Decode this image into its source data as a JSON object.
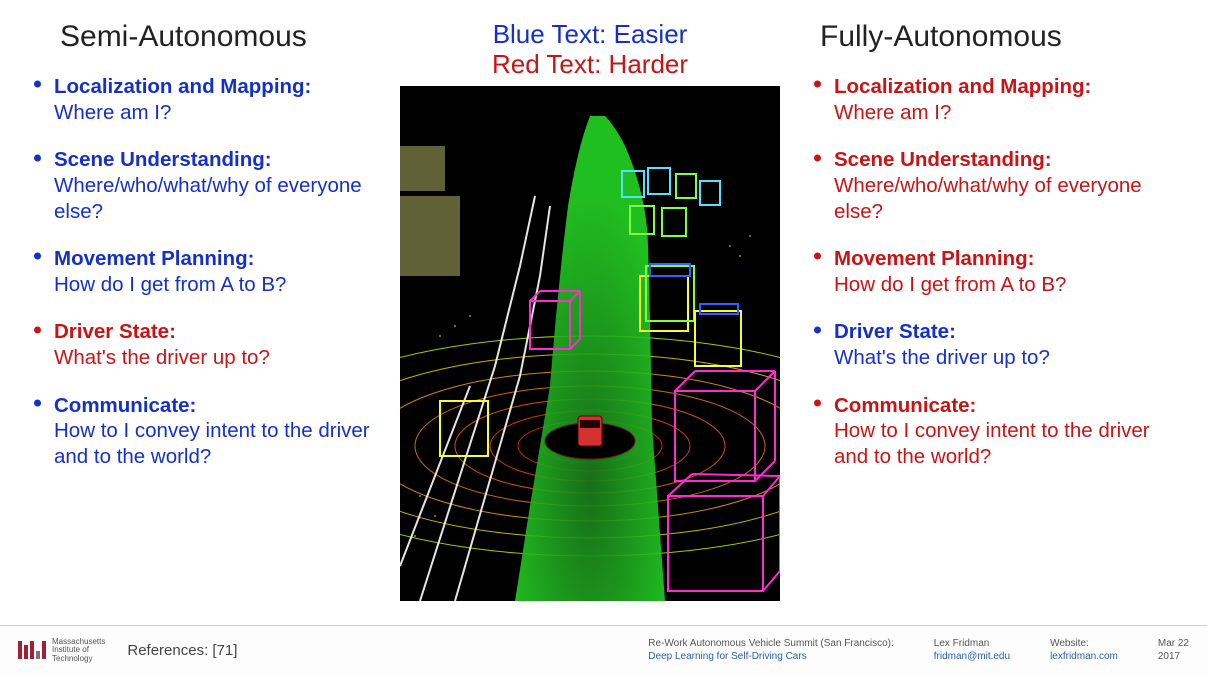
{
  "colors": {
    "easier": "#1430c8",
    "harder": "#c81414",
    "text": "#222222",
    "footer_border": "#cfcfcf",
    "footer_link": "#2a5db0",
    "mit_red": "#a31f34"
  },
  "legend": {
    "easier_label": "Blue Text: Easier",
    "harder_label": "Red Text: Harder"
  },
  "columns": {
    "left": {
      "title": "Semi-Autonomous",
      "items": [
        {
          "title": "Localization and Mapping:",
          "desc": "Where am I?",
          "difficulty": "easier"
        },
        {
          "title": "Scene Understanding:",
          "desc": "Where/who/what/why of everyone else?",
          "difficulty": "easier"
        },
        {
          "title": "Movement Planning:",
          "desc": "How do I get from A to B?",
          "difficulty": "easier"
        },
        {
          "title": "Driver State:",
          "desc": "What's the driver up to?",
          "difficulty": "harder"
        },
        {
          "title": "Communicate:",
          "desc": "How to I convey intent to the driver and to the world?",
          "difficulty": "easier"
        }
      ]
    },
    "right": {
      "title": "Fully-Autonomous",
      "items": [
        {
          "title": "Localization and Mapping:",
          "desc": "Where am I?",
          "difficulty": "harder"
        },
        {
          "title": "Scene Understanding:",
          "desc": "Where/who/what/why of everyone else?",
          "difficulty": "harder"
        },
        {
          "title": "Movement Planning:",
          "desc": "How do I get from A to B?",
          "difficulty": "harder"
        },
        {
          "title": "Driver State:",
          "desc": "What's the driver up to?",
          "difficulty": "easier"
        },
        {
          "title": "Communicate:",
          "desc": "How to I convey intent to the driver and to the world?",
          "difficulty": "harder"
        }
      ]
    }
  },
  "viz": {
    "background": "#000000",
    "road_color": "#24d424",
    "ring_colors": [
      "#ff6a00",
      "#ffb000",
      "#ffe000",
      "#c8ff00"
    ],
    "lane_line_color": "#f2f2f2",
    "wall_dot_color": "#8a8a50",
    "box_colors": {
      "magenta": "#ff2ad4",
      "cyan": "#55e0ff",
      "green": "#80ff40",
      "yellow": "#f5ff30",
      "blue": "#3060ff"
    },
    "ego_color": "#d63030"
  },
  "footer": {
    "institute_line1": "Massachusetts",
    "institute_line2": "Institute of",
    "institute_line3": "Technology",
    "references_label": "References:",
    "references_value": "[71]",
    "event_line1": "Re-Work Autonomous Vehicle Summit (San Francisco):",
    "event_line2": "Deep Learning for Self-Driving Cars",
    "author_line1": "Lex Fridman",
    "author_line2": "fridman@mit.edu",
    "website_line1": "Website:",
    "website_line2": "lexfridman.com",
    "date_line1": "Mar 22",
    "date_line2": "2017"
  }
}
